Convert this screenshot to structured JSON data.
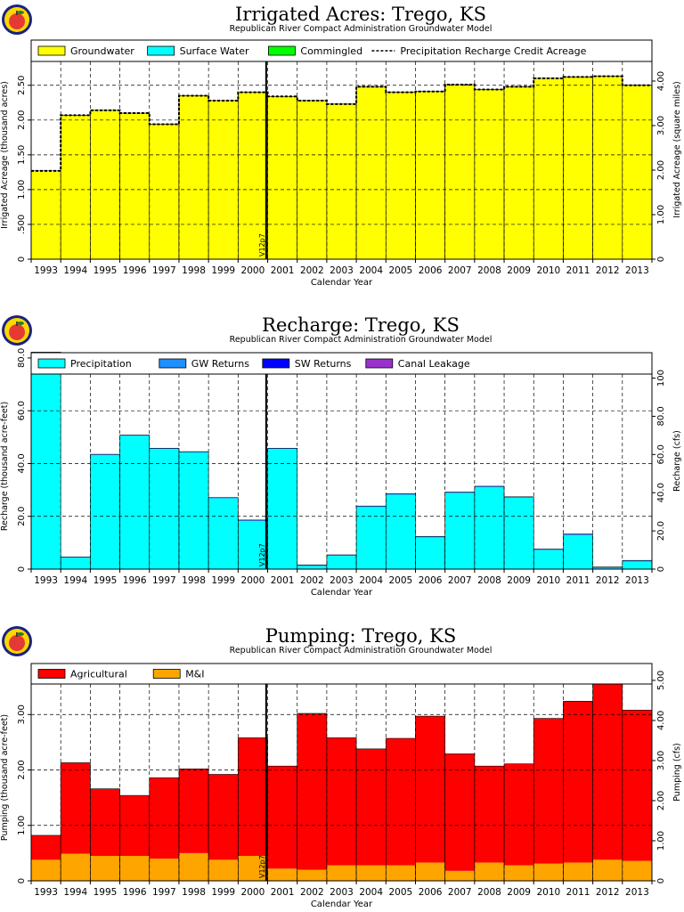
{
  "colors": {
    "groundwater": "#ffff00",
    "surface_water": "#00ffff",
    "commingled": "#00ff00",
    "precipitation": "#00ffff",
    "gw_returns": "#1e90ff",
    "sw_returns": "#0000ff",
    "canal_leakage": "#9932cc",
    "agricultural": "#ff0000",
    "mi": "#ffa500"
  },
  "chart_data": [
    {
      "type": "bar",
      "title": "Irrigated Acres: Trego, KS",
      "subtitle": "Republican River Compact Administration Groundwater Model",
      "xlabel": "Calendar Year",
      "ylabel": "Irrigated Acreage (thousand acres)",
      "ylabel_right": "Irrigated Acreage (square miles)",
      "categories": [
        "1993",
        "1994",
        "1995",
        "1996",
        "1997",
        "1998",
        "1999",
        "2000",
        "2001",
        "2002",
        "2003",
        "2004",
        "2005",
        "2006",
        "2007",
        "2008",
        "2009",
        "2010",
        "2011",
        "2012",
        "2013"
      ],
      "y_ticks": [
        0,
        0.5,
        1.0,
        1.5,
        2.0,
        2.5
      ],
      "y_tick_labels": [
        "0",
        ".500",
        "1.00",
        "1.50",
        "2.00",
        "2.50"
      ],
      "ylim": [
        0,
        3.15
      ],
      "y2_ticks": [
        0,
        1.0,
        2.0,
        3.0,
        4.0
      ],
      "y2_tick_labels": [
        "0",
        "1.00",
        "2.00",
        "3.00",
        "4.00"
      ],
      "y2lim": [
        0,
        4.92
      ],
      "grid": true,
      "legend_position": "top",
      "legend": [
        {
          "label": "Groundwater",
          "kind": "box",
          "color_key": "groundwater"
        },
        {
          "label": "Surface Water",
          "kind": "box",
          "color_key": "surface_water"
        },
        {
          "label": "Commingled",
          "kind": "box",
          "color_key": "commingled"
        },
        {
          "label": "Precipitation Recharge Credit Acreage",
          "kind": "dashed"
        }
      ],
      "series": [
        {
          "name": "Groundwater",
          "color_key": "groundwater",
          "values": [
            1.27,
            2.07,
            2.14,
            2.1,
            1.94,
            2.35,
            2.28,
            2.4,
            2.34,
            2.28,
            2.23,
            2.48,
            2.4,
            2.41,
            2.51,
            2.44,
            2.48,
            2.6,
            2.62,
            2.63,
            2.5
          ]
        }
      ],
      "line": {
        "name": "Precipitation Recharge Credit Acreage",
        "values": [
          1.27,
          2.07,
          2.14,
          2.1,
          1.94,
          2.35,
          2.28,
          2.4,
          2.34,
          2.28,
          2.23,
          2.48,
          2.4,
          2.41,
          2.51,
          2.44,
          2.48,
          2.6,
          2.62,
          2.63,
          2.5
        ]
      },
      "marker": {
        "label": "V12p7",
        "year_index": 7.95
      }
    },
    {
      "type": "bar",
      "title": "Recharge: Trego, KS",
      "subtitle": "Republican River Compact Administration Groundwater Model",
      "xlabel": "Calendar Year",
      "ylabel": "Recharge (thousand acre-feet)",
      "ylabel_right": "Recharge (cfs)",
      "categories": [
        "1993",
        "1994",
        "1995",
        "1996",
        "1997",
        "1998",
        "1999",
        "2000",
        "2001",
        "2002",
        "2003",
        "2004",
        "2005",
        "2006",
        "2007",
        "2008",
        "2009",
        "2010",
        "2011",
        "2012",
        "2013"
      ],
      "y_ticks": [
        0,
        20,
        40,
        60,
        80
      ],
      "y_tick_labels": [
        "0",
        "20.0",
        "40.0",
        "60.0",
        "80.0"
      ],
      "ylim": [
        0,
        82
      ],
      "y2_ticks": [
        0,
        20,
        40,
        60,
        80,
        100
      ],
      "y2_tick_labels": [
        "0",
        "20.0",
        "40.0",
        "60.0",
        "80.0",
        "100"
      ],
      "y2lim": [
        0,
        113.3
      ],
      "grid": true,
      "legend_position": "top",
      "legend": [
        {
          "label": "Precipitation",
          "kind": "box",
          "color_key": "precipitation"
        },
        {
          "label": "GW Returns",
          "kind": "box",
          "color_key": "gw_returns"
        },
        {
          "label": "SW Returns",
          "kind": "box",
          "color_key": "sw_returns"
        },
        {
          "label": "Canal Leakage",
          "kind": "box",
          "color_key": "canal_leakage"
        }
      ],
      "series": [
        {
          "name": "Precipitation",
          "color_key": "precipitation",
          "values": [
            82.0,
            4.3,
            43.2,
            50.5,
            45.5,
            44.2,
            26.8,
            18.2,
            45.5,
            1.2,
            5.0,
            23.5,
            28.2,
            12.0,
            28.8,
            31.0,
            27.0,
            7.2,
            12.8,
            0.3,
            2.8
          ]
        },
        {
          "name": "GW Returns",
          "color_key": "gw_returns",
          "values": [
            0.2,
            0.3,
            0.3,
            0.3,
            0.3,
            0.3,
            0.3,
            0.4,
            0.3,
            0.4,
            0.4,
            0.4,
            0.4,
            0.4,
            0.4,
            0.4,
            0.4,
            0.4,
            0.5,
            0.5,
            0.5
          ]
        }
      ],
      "marker": {
        "label": "V12p7",
        "year_index": 7.95
      }
    },
    {
      "type": "bar",
      "title": "Pumping: Trego, KS",
      "subtitle": "Republican River Compact Administration Groundwater Model",
      "xlabel": "Calendar Year",
      "ylabel": "Pumping (thousand acre-feet)",
      "ylabel_right": "Pumping (cfs)",
      "categories": [
        "1993",
        "1994",
        "1995",
        "1996",
        "1997",
        "1998",
        "1999",
        "2000",
        "2001",
        "2002",
        "2003",
        "2004",
        "2005",
        "2006",
        "2007",
        "2008",
        "2009",
        "2010",
        "2011",
        "2012",
        "2013"
      ],
      "y_ticks": [
        0,
        1.0,
        2.0,
        3.0
      ],
      "y_tick_labels": [
        "0",
        "1.00",
        "2.00",
        "3.00"
      ],
      "ylim": [
        0,
        3.92
      ],
      "y2_ticks": [
        0,
        1.0,
        2.0,
        3.0,
        4.0,
        5.0
      ],
      "y2_tick_labels": [
        "0",
        "1.00",
        "2.00",
        "3.00",
        "4.00",
        "5.00"
      ],
      "y2lim": [
        0,
        5.42
      ],
      "grid": true,
      "legend_position": "top",
      "legend": [
        {
          "label": "Agricultural",
          "kind": "box",
          "color_key": "agricultural"
        },
        {
          "label": "M&I",
          "kind": "box",
          "color_key": "mi"
        }
      ],
      "series": [
        {
          "name": "M&I",
          "color_key": "mi",
          "values": [
            0.38,
            0.49,
            0.45,
            0.45,
            0.4,
            0.5,
            0.38,
            0.45,
            0.22,
            0.2,
            0.28,
            0.28,
            0.28,
            0.33,
            0.18,
            0.33,
            0.28,
            0.31,
            0.33,
            0.38,
            0.36
          ]
        },
        {
          "name": "Agricultural",
          "color_key": "agricultural",
          "values": [
            0.44,
            1.64,
            1.21,
            1.09,
            1.46,
            1.52,
            1.54,
            2.13,
            1.85,
            2.82,
            2.3,
            2.1,
            2.29,
            2.64,
            2.11,
            1.74,
            1.83,
            2.62,
            2.91,
            3.46,
            2.72
          ]
        }
      ],
      "marker": {
        "label": "V12p7",
        "year_index": 7.95
      }
    }
  ]
}
